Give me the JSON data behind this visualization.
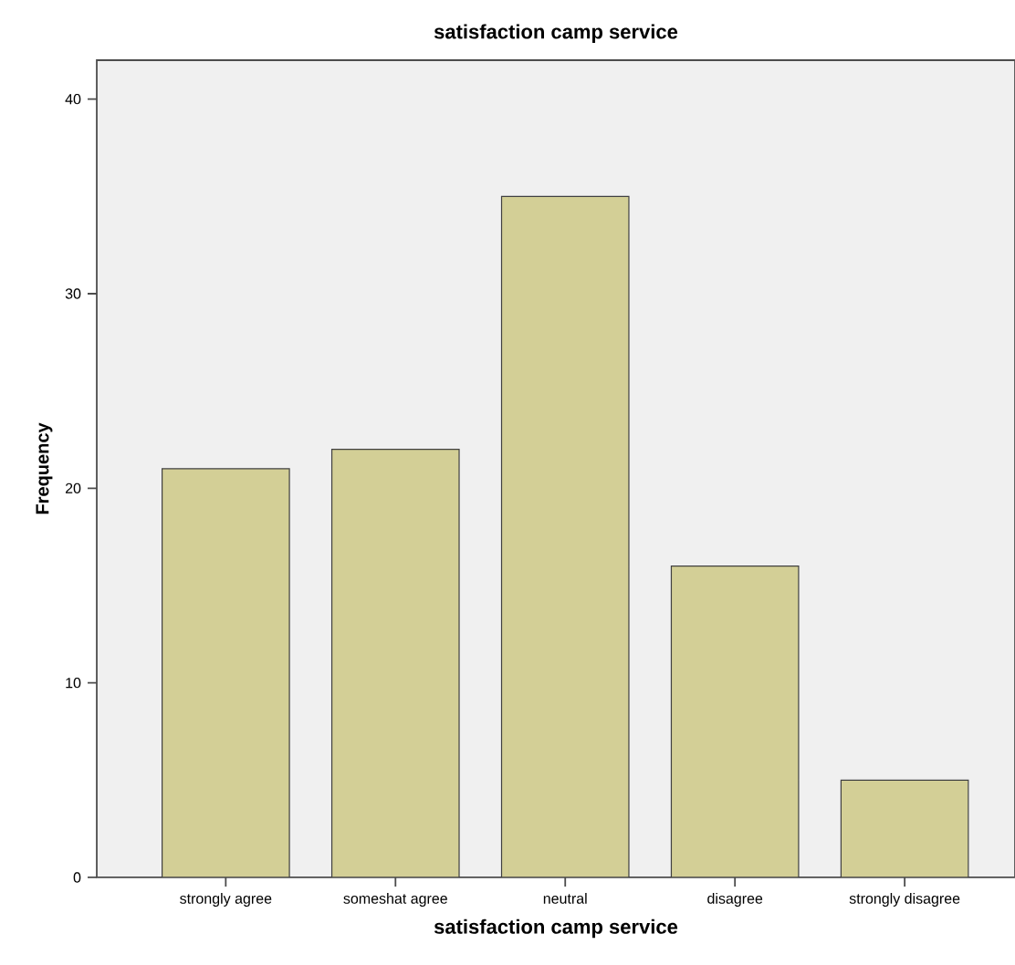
{
  "chart_data": {
    "type": "bar",
    "title": "satisfaction camp service",
    "xlabel": "satisfaction camp service",
    "ylabel": "Frequency",
    "categories": [
      "strongly agree",
      "someshat agree",
      "neutral",
      "disagree",
      "strongly disagree"
    ],
    "values": [
      21,
      22,
      35,
      16,
      5
    ],
    "color": "#d3cf96",
    "ylim": [
      0,
      42
    ],
    "yticks": [
      0,
      10,
      20,
      30,
      40
    ],
    "grid": false
  }
}
